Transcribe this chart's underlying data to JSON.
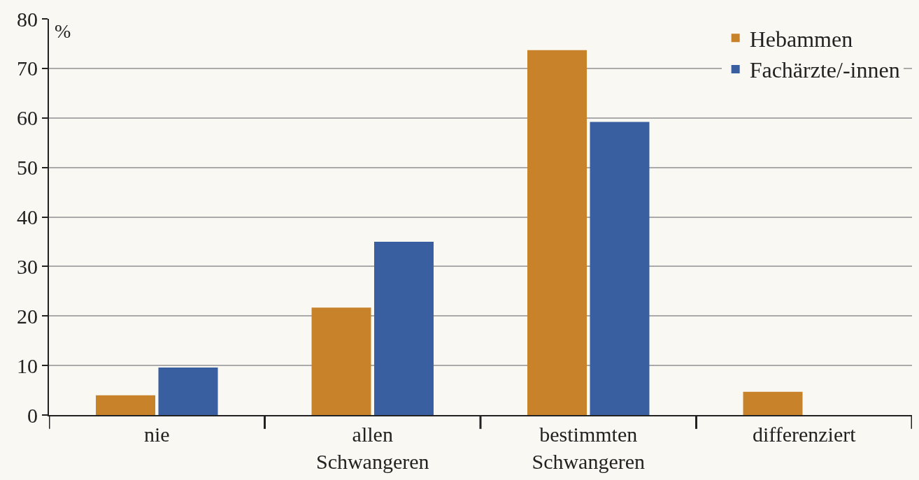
{
  "chart_data": {
    "type": "bar",
    "ylabel": "%",
    "categories": [
      "nie",
      "allen\nSchwangeren",
      "bestimmten\nSchwangeren",
      "differenziert"
    ],
    "series": [
      {
        "name": "Hebammen",
        "color": "#c8832a",
        "values": [
          4.0,
          21.7,
          73.7,
          4.7
        ]
      },
      {
        "name": "Fachärzte/-innen",
        "color": "#3a5fa0",
        "values": [
          9.6,
          35.0,
          59.2,
          null
        ]
      }
    ],
    "ylim": [
      0,
      80
    ],
    "yticks": [
      0,
      10,
      20,
      30,
      40,
      50,
      60,
      70,
      80
    ],
    "grid": "y",
    "legend": "top right"
  }
}
